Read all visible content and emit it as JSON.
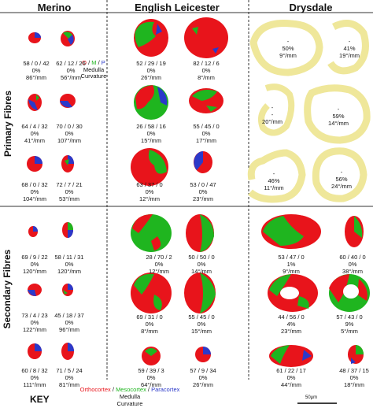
{
  "headers": {
    "merino": "Merino",
    "leicester": "English Leicester",
    "drysdale": "Drysdale"
  },
  "row_labels": {
    "primary": "Primary Fibres",
    "secondary": "Secondary Fibres"
  },
  "legend": {
    "o": "O",
    "m": "M",
    "p": "P",
    "sep": " / ",
    "medulla": "Medulla",
    "curvature": "Curvature"
  },
  "key": {
    "title": "KEY",
    "ortho": "Orthocortex",
    "meso": "Mesocortex",
    "para": "Paracortex",
    "sep": " / ",
    "medulla": "Medulla",
    "curvature": "Curvature"
  },
  "scale_bar": "50μm",
  "colors": {
    "ortho": "#e8141b",
    "meso": "#1fb51f",
    "para": "#2b39c9",
    "medulla_ring": "#efe79a",
    "divider": "#333333"
  },
  "captions": {
    "merino_p1a": {
      "omp": "58 / 0 / 42",
      "med": "0%",
      "curv": "86°/mm"
    },
    "merino_p1b": {
      "omp": "62 / 12 / 26",
      "med": "0%",
      "curv": "56°/mm"
    },
    "leic_p1a": {
      "omp": "52 / 29 / 19",
      "med": "0%",
      "curv": "26°/mm"
    },
    "leic_p1b": {
      "omp": "82 / 12 / 6",
      "med": "0%",
      "curv": "8°/mm"
    },
    "dry_p1a": {
      "omp": "-",
      "med": "50%",
      "curv": "9°/mm"
    },
    "dry_p1b": {
      "omp": "-",
      "med": "41%",
      "curv": "19°/mm"
    },
    "merino_p2a": {
      "omp": "64 / 4 / 32",
      "med": "0%",
      "curv": "41°/mm"
    },
    "merino_p2b": {
      "omp": "70 / 0 / 30",
      "med": "0%",
      "curv": "107°/mm"
    },
    "leic_p2a": {
      "omp": "26 / 58 / 16",
      "med": "0%",
      "curv": "15°/mm"
    },
    "leic_p2b": {
      "omp": "55 / 45 / 0",
      "med": "0%",
      "curv": "17°/mm"
    },
    "dry_p2a": {
      "omp": "-",
      "med": "-",
      "curv": "20°/mm"
    },
    "dry_p2b": {
      "omp": "-",
      "med": "59%",
      "curv": "14°/mm"
    },
    "merino_p3a": {
      "omp": "68 / 0 / 32",
      "med": "0%",
      "curv": "104°/mm"
    },
    "merino_p3b": {
      "omp": "72 / 7 / 21",
      "med": "0%",
      "curv": "53°/mm"
    },
    "leic_p3a": {
      "omp": "63 / 37 / 0",
      "med": "0%",
      "curv": "12°/mm"
    },
    "leic_p3b": {
      "omp": "53 / 0 / 47",
      "med": "0%",
      "curv": "23°/mm"
    },
    "dry_p3a": {
      "omp": "-",
      "med": "46%",
      "curv": "11°/mm"
    },
    "dry_p3b": {
      "omp": "-",
      "med": "56%",
      "curv": "24°/mm"
    },
    "merino_s1a": {
      "omp": "69 / 9 / 22",
      "med": "0%",
      "curv": "120°/mm"
    },
    "merino_s1b": {
      "omp": "58 / 11 / 31",
      "med": "0%",
      "curv": "120°/mm"
    },
    "leic_s1a": {
      "omp": "28 / 70 / 2",
      "med": "0%",
      "curv": "12°/mm"
    },
    "leic_s1b": {
      "omp": "50 / 50 / 0",
      "med": "0%",
      "curv": "14°/mm"
    },
    "dry_s1a": {
      "omp": "53 / 47 / 0",
      "med": "1%",
      "curv": "9°/mm"
    },
    "dry_s1b": {
      "omp": "60 / 40 / 0",
      "med": "0%",
      "curv": "38°/mm"
    },
    "merino_s2a": {
      "omp": "73 / 4 / 23",
      "med": "0%",
      "curv": "122°/mm"
    },
    "merino_s2b": {
      "omp": "45 / 18 / 37",
      "med": "0%",
      "curv": "96°/mm"
    },
    "leic_s2a": {
      "omp": "69 / 31 / 0",
      "med": "0%",
      "curv": "8°/mm"
    },
    "leic_s2b": {
      "omp": "55 / 45 / 0",
      "med": "0%",
      "curv": "15°/mm"
    },
    "dry_s2a": {
      "omp": "44 / 56 / 0",
      "med": "4%",
      "curv": "23°/mm"
    },
    "dry_s2b": {
      "omp": "57 / 43 / 0",
      "med": "9%",
      "curv": "5°/mm"
    },
    "merino_s3a": {
      "omp": "60 / 8 / 32",
      "med": "0%",
      "curv": "111°/mm"
    },
    "merino_s3b": {
      "omp": "71 / 5 / 24",
      "med": "0%",
      "curv": "81°/mm"
    },
    "leic_s3a": {
      "omp": "59 / 39 / 3",
      "med": "0%",
      "curv": "64°/mm"
    },
    "leic_s3b": {
      "omp": "57 / 9 / 34",
      "med": "0%",
      "curv": "26°/mm"
    },
    "dry_s3a": {
      "omp": "61 / 22 / 17",
      "med": "0%",
      "curv": "44°/mm"
    },
    "dry_s3b": {
      "omp": "48 / 37 / 15",
      "med": "0%",
      "curv": "18°/mm"
    }
  }
}
